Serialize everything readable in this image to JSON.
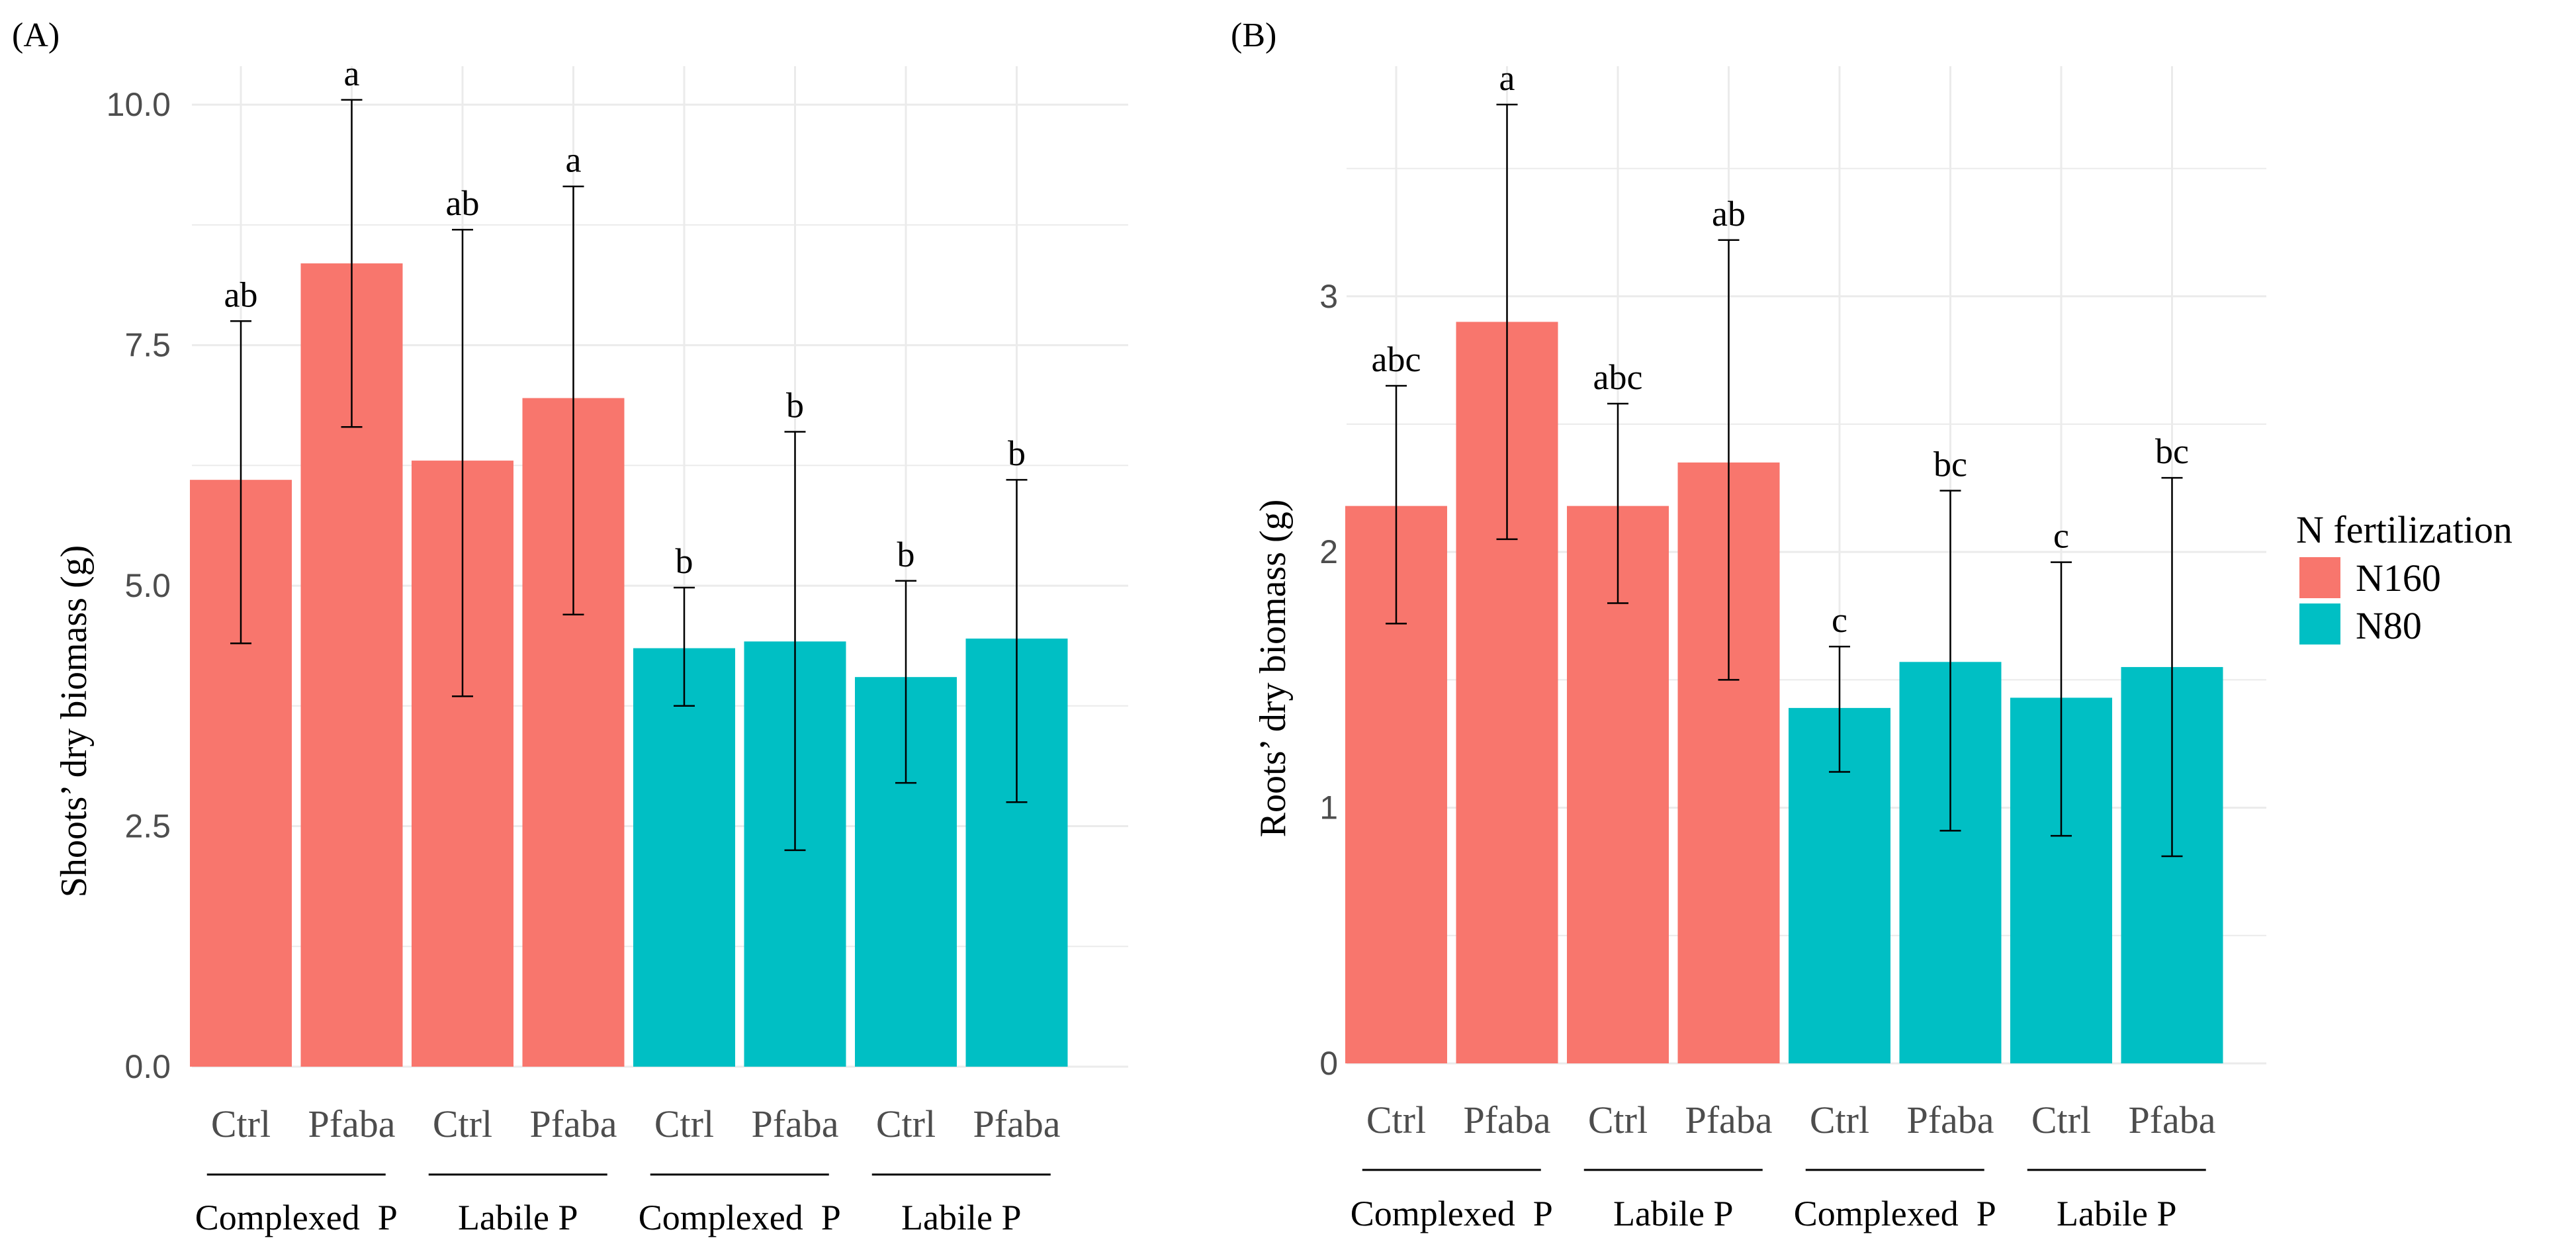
{
  "colors": {
    "N160": "#F8766D",
    "N80": "#00BFC4",
    "grid": "#ebebeb",
    "errorbar": "#000000"
  },
  "legend": {
    "title": "N fertilization",
    "items": [
      {
        "label": "N160",
        "color": "#F8766D"
      },
      {
        "label": "N80",
        "color": "#00BFC4"
      }
    ]
  },
  "chart_data": [
    {
      "type": "bar",
      "panel": "(A)",
      "ylabel": "Shoots’ dry biomass (g)",
      "ylim": [
        0,
        10.4
      ],
      "yticks": [
        "0.0",
        "2.5",
        "5.0",
        "7.5",
        "10.0"
      ],
      "ytick_values": [
        0,
        2.5,
        5.0,
        7.5,
        10.0
      ],
      "grid": true,
      "categories": [
        "Ctrl",
        "Pfaba",
        "Ctrl",
        "Pfaba",
        "Ctrl",
        "Pfaba",
        "Ctrl",
        "Pfaba"
      ],
      "groups": [
        "Complexed  P",
        "Labile P",
        "Complexed  P",
        "Labile P"
      ],
      "series_by_bar": [
        "N160",
        "N160",
        "N160",
        "N160",
        "N80",
        "N80",
        "N80",
        "N80"
      ],
      "values": [
        6.1,
        8.35,
        6.3,
        6.95,
        4.35,
        4.42,
        4.05,
        4.45
      ],
      "err_low": [
        4.4,
        6.65,
        3.85,
        4.7,
        3.75,
        2.25,
        2.95,
        2.75
      ],
      "err_high": [
        7.75,
        10.05,
        8.7,
        9.15,
        4.98,
        6.6,
        5.05,
        6.1
      ],
      "letters": [
        "ab",
        "a",
        "ab",
        "a",
        "b",
        "b",
        "b",
        "b"
      ]
    },
    {
      "type": "bar",
      "panel": "(B)",
      "ylabel": "Roots’ dry biomass (g)",
      "ylim": [
        0,
        3.9
      ],
      "yticks": [
        "0",
        "1",
        "2",
        "3"
      ],
      "ytick_values": [
        0,
        1,
        2,
        3
      ],
      "grid": true,
      "categories": [
        "Ctrl",
        "Pfaba",
        "Ctrl",
        "Pfaba",
        "Ctrl",
        "Pfaba",
        "Ctrl",
        "Pfaba"
      ],
      "groups": [
        "Complexed  P",
        "Labile P",
        "Complexed  P",
        "Labile P"
      ],
      "series_by_bar": [
        "N160",
        "N160",
        "N160",
        "N160",
        "N80",
        "N80",
        "N80",
        "N80"
      ],
      "values": [
        2.18,
        2.9,
        2.18,
        2.35,
        1.39,
        1.57,
        1.43,
        1.55
      ],
      "err_low": [
        1.72,
        2.05,
        1.8,
        1.5,
        1.14,
        0.91,
        0.89,
        0.81
      ],
      "err_high": [
        2.65,
        3.75,
        2.58,
        3.22,
        1.63,
        2.24,
        1.96,
        2.29
      ],
      "letters": [
        "abc",
        "a",
        "abc",
        "ab",
        "c",
        "bc",
        "c",
        "bc"
      ]
    }
  ]
}
